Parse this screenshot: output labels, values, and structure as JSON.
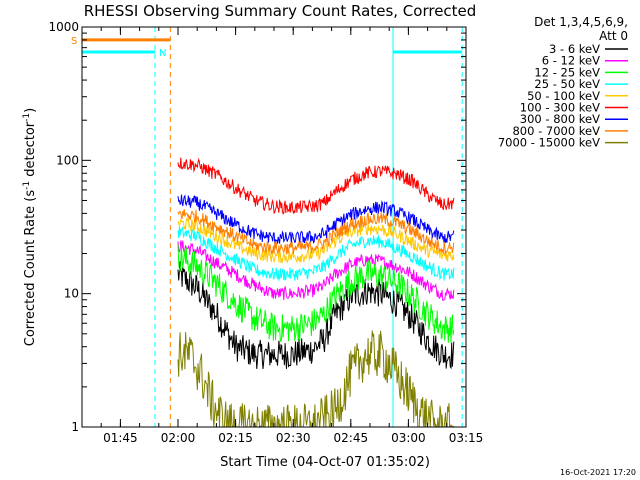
{
  "chart_data": {
    "type": "line",
    "title": "RHESSI Observing Summary Count Rates, Corrected",
    "xlabel": "Start Time (04-Oct-07 01:35:02)",
    "ylabel_main": "Corrected Count Rate (s",
    "ylabel_sup1": "-1",
    "ylabel_mid": " detector",
    "ylabel_sup2": "-1",
    "ylabel_end": ")",
    "yscale": "log",
    "ylim": [
      1,
      1000
    ],
    "xlim_minutes": [
      0,
      100
    ],
    "x_ticks": [
      {
        "label": "01:45",
        "minute": 10
      },
      {
        "label": "02:00",
        "minute": 25
      },
      {
        "label": "02:15",
        "minute": 40
      },
      {
        "label": "02:30",
        "minute": 55
      },
      {
        "label": "02:45",
        "minute": 70
      },
      {
        "label": "03:00",
        "minute": 85
      },
      {
        "label": "03:15",
        "minute": 100
      }
    ],
    "y_ticks": [
      {
        "label": "1",
        "value": 1
      },
      {
        "label": "10",
        "value": 10
      },
      {
        "label": "100",
        "value": 100
      },
      {
        "label": "1000",
        "value": 1000
      }
    ],
    "legend_header": [
      "Det 1,3,4,5,6,9,",
      "Att 0"
    ],
    "legend_position": "right",
    "series": [
      {
        "name": "3 - 6 keV",
        "color": "#000000",
        "pts": [
          [
            25,
            14
          ],
          [
            30,
            11
          ],
          [
            35,
            7
          ],
          [
            40,
            4
          ],
          [
            45,
            3.5
          ],
          [
            50,
            3.5
          ],
          [
            55,
            3.5
          ],
          [
            60,
            3.8
          ],
          [
            63,
            4.5
          ],
          [
            66,
            7
          ],
          [
            70,
            9.5
          ],
          [
            74,
            10.5
          ],
          [
            78,
            10
          ],
          [
            82,
            8.5
          ],
          [
            86,
            6.5
          ],
          [
            90,
            4.5
          ],
          [
            94,
            3.5
          ],
          [
            97,
            3.5
          ]
        ]
      },
      {
        "name": "6 - 12 keV",
        "color": "#ff00ff",
        "pts": [
          [
            25,
            23
          ],
          [
            30,
            21
          ],
          [
            35,
            17
          ],
          [
            40,
            14
          ],
          [
            45,
            11.5
          ],
          [
            50,
            10
          ],
          [
            55,
            10
          ],
          [
            60,
            10.5
          ],
          [
            63,
            11.5
          ],
          [
            66,
            14
          ],
          [
            70,
            16.5
          ],
          [
            74,
            18
          ],
          [
            78,
            17.5
          ],
          [
            82,
            16
          ],
          [
            86,
            14
          ],
          [
            90,
            11.5
          ],
          [
            94,
            10
          ],
          [
            97,
            10
          ]
        ]
      },
      {
        "name": "12 - 25 keV",
        "color": "#00ff00",
        "pts": [
          [
            25,
            19
          ],
          [
            30,
            16
          ],
          [
            35,
            12
          ],
          [
            40,
            8.5
          ],
          [
            45,
            6.5
          ],
          [
            50,
            5.5
          ],
          [
            55,
            5.5
          ],
          [
            60,
            6
          ],
          [
            63,
            7
          ],
          [
            66,
            9.5
          ],
          [
            70,
            12.5
          ],
          [
            74,
            14
          ],
          [
            78,
            13.5
          ],
          [
            82,
            12
          ],
          [
            86,
            9.5
          ],
          [
            90,
            7
          ],
          [
            94,
            5.5
          ],
          [
            97,
            5.5
          ]
        ]
      },
      {
        "name": "25 - 50 keV",
        "color": "#00ffff",
        "pts": [
          [
            25,
            29
          ],
          [
            30,
            27
          ],
          [
            35,
            22
          ],
          [
            40,
            18
          ],
          [
            45,
            15
          ],
          [
            50,
            14
          ],
          [
            55,
            14
          ],
          [
            60,
            14.5
          ],
          [
            63,
            16
          ],
          [
            66,
            19
          ],
          [
            70,
            23
          ],
          [
            74,
            25
          ],
          [
            78,
            24.5
          ],
          [
            82,
            22
          ],
          [
            86,
            19
          ],
          [
            90,
            16
          ],
          [
            94,
            14
          ],
          [
            97,
            14
          ]
        ]
      },
      {
        "name": "50 - 100 keV",
        "color": "#ffc800",
        "pts": [
          [
            25,
            34
          ],
          [
            30,
            32
          ],
          [
            35,
            27
          ],
          [
            40,
            23
          ],
          [
            45,
            20
          ],
          [
            50,
            19
          ],
          [
            55,
            19
          ],
          [
            60,
            19.5
          ],
          [
            63,
            21
          ],
          [
            66,
            25
          ],
          [
            70,
            29
          ],
          [
            74,
            31
          ],
          [
            78,
            30.5
          ],
          [
            82,
            28
          ],
          [
            86,
            24
          ],
          [
            90,
            21
          ],
          [
            94,
            19.5
          ],
          [
            97,
            19.5
          ]
        ]
      },
      {
        "name": "100 - 300 keV",
        "color": "#ff0000",
        "pts": [
          [
            25,
            96
          ],
          [
            30,
            92
          ],
          [
            35,
            78
          ],
          [
            40,
            62
          ],
          [
            45,
            50
          ],
          [
            50,
            45
          ],
          [
            55,
            44
          ],
          [
            60,
            45
          ],
          [
            63,
            48
          ],
          [
            66,
            58
          ],
          [
            70,
            71
          ],
          [
            74,
            80
          ],
          [
            78,
            83
          ],
          [
            82,
            79
          ],
          [
            86,
            70
          ],
          [
            90,
            55
          ],
          [
            94,
            46
          ],
          [
            97,
            48
          ]
        ]
      },
      {
        "name": "300 - 800 keV",
        "color": "#0000ff",
        "pts": [
          [
            25,
            50
          ],
          [
            30,
            48
          ],
          [
            35,
            40
          ],
          [
            40,
            33
          ],
          [
            45,
            28
          ],
          [
            50,
            26
          ],
          [
            55,
            26
          ],
          [
            60,
            26.5
          ],
          [
            63,
            28
          ],
          [
            66,
            33
          ],
          [
            70,
            39
          ],
          [
            74,
            43
          ],
          [
            78,
            44.5
          ],
          [
            82,
            41
          ],
          [
            86,
            36
          ],
          [
            90,
            30
          ],
          [
            94,
            26
          ],
          [
            97,
            27
          ]
        ]
      },
      {
        "name": "800 - 7000 keV",
        "color": "#ff8000",
        "pts": [
          [
            25,
            40
          ],
          [
            30,
            38
          ],
          [
            35,
            32
          ],
          [
            40,
            27
          ],
          [
            45,
            23
          ],
          [
            50,
            22
          ],
          [
            55,
            22
          ],
          [
            60,
            22.5
          ],
          [
            63,
            24
          ],
          [
            66,
            28
          ],
          [
            70,
            33
          ],
          [
            74,
            36
          ],
          [
            78,
            36.5
          ],
          [
            82,
            34
          ],
          [
            86,
            29.5
          ],
          [
            90,
            25
          ],
          [
            94,
            22
          ],
          [
            97,
            22.5
          ]
        ]
      },
      {
        "name": "7000 - 15000 keV",
        "color": "#808000",
        "pts": [
          [
            25,
            3.5
          ],
          [
            28,
            3.5
          ],
          [
            31,
            2.5
          ],
          [
            34,
            1.5
          ],
          [
            37,
            1.1
          ],
          [
            40,
            1.0
          ],
          [
            50,
            1.0
          ],
          [
            60,
            1.0
          ],
          [
            66,
            1.3
          ],
          [
            70,
            2.5
          ],
          [
            74,
            3.5
          ],
          [
            78,
            3.5
          ],
          [
            80,
            3
          ],
          [
            84,
            2
          ],
          [
            88,
            1.3
          ],
          [
            92,
            1.0
          ],
          [
            97,
            1.0
          ]
        ]
      }
    ],
    "flags": [
      {
        "label": "S",
        "color": "#ff8000",
        "y": 800,
        "x_start": 0,
        "x_end": 23
      },
      {
        "label": "N",
        "color": "#00ffff",
        "y": 650,
        "x_start": 0,
        "x_end": 19,
        "x_start2": 81,
        "x_end2": 99
      }
    ],
    "markers": [
      {
        "color": "#00ffff",
        "style": "dashed",
        "minute": 19
      },
      {
        "color": "#ff8000",
        "style": "dashed",
        "minute": 23
      },
      {
        "color": "#00ffff",
        "style": "solid",
        "minute": 81
      },
      {
        "color": "#00ffff",
        "style": "dashed",
        "minute": 99
      }
    ],
    "timestamp": "16-Oct-2021 17:20"
  }
}
